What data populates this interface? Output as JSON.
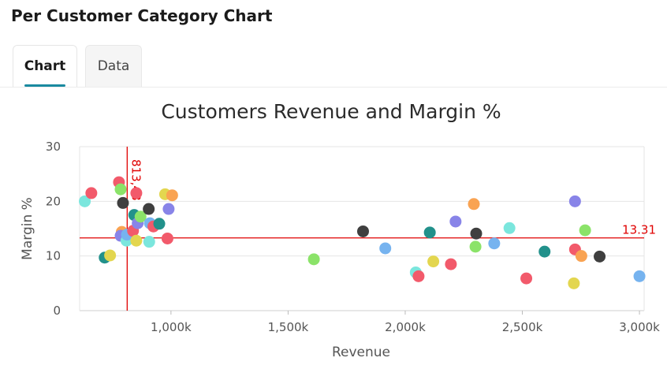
{
  "page": {
    "title": "Per Customer Category Chart"
  },
  "tabs": [
    {
      "label": "Chart",
      "active": true
    },
    {
      "label": "Data",
      "active": false
    }
  ],
  "chart_data": {
    "type": "scatter",
    "title": "Customers Revenue and Margin %",
    "xlabel": "Revenue",
    "ylabel": "Margin %",
    "xlim": [
      610000,
      3020000
    ],
    "ylim": [
      0,
      30
    ],
    "x_ticks": [
      1000000,
      1500000,
      2000000,
      2500000,
      3000000
    ],
    "x_tick_labels": [
      "1,000k",
      "1,500k",
      "2,000k",
      "2,500k",
      "3,000k"
    ],
    "y_ticks": [
      0,
      10,
      20,
      30
    ],
    "y_tick_labels": [
      "0",
      "10",
      "20",
      "30"
    ],
    "grid": true,
    "reference_lines": {
      "color": "#e00000",
      "vertical": {
        "x": 813000,
        "label": "813,48"
      },
      "horizontal": {
        "y": 13.31,
        "label": "13.31"
      }
    },
    "points": [
      {
        "x": 632000,
        "y": 20.0,
        "color": "#7be6dd"
      },
      {
        "x": 660000,
        "y": 21.5,
        "color": "#f25a6b"
      },
      {
        "x": 717000,
        "y": 9.7,
        "color": "#22918b"
      },
      {
        "x": 740000,
        "y": 10.1,
        "color": "#e3d64f"
      },
      {
        "x": 778000,
        "y": 23.5,
        "color": "#f25a6b"
      },
      {
        "x": 785000,
        "y": 22.2,
        "color": "#8be369"
      },
      {
        "x": 790000,
        "y": 14.4,
        "color": "#f9a352"
      },
      {
        "x": 795000,
        "y": 19.7,
        "color": "#3f3f3f"
      },
      {
        "x": 785000,
        "y": 13.7,
        "color": "#8884e8"
      },
      {
        "x": 810000,
        "y": 12.8,
        "color": "#7be6dd"
      },
      {
        "x": 812000,
        "y": 13.9,
        "color": "#76b3ef"
      },
      {
        "x": 838000,
        "y": 14.6,
        "color": "#f25a6b"
      },
      {
        "x": 843000,
        "y": 17.5,
        "color": "#22918b"
      },
      {
        "x": 852000,
        "y": 21.5,
        "color": "#f25a6b"
      },
      {
        "x": 852000,
        "y": 12.8,
        "color": "#e3d64f"
      },
      {
        "x": 858000,
        "y": 16.0,
        "color": "#8884e8"
      },
      {
        "x": 870000,
        "y": 17.2,
        "color": "#8be369"
      },
      {
        "x": 905000,
        "y": 18.6,
        "color": "#3f3f3f"
      },
      {
        "x": 910000,
        "y": 16.0,
        "color": "#76b3ef"
      },
      {
        "x": 907000,
        "y": 12.6,
        "color": "#7be6dd"
      },
      {
        "x": 925000,
        "y": 15.4,
        "color": "#f25a6b"
      },
      {
        "x": 950000,
        "y": 15.9,
        "color": "#22918b"
      },
      {
        "x": 975000,
        "y": 21.3,
        "color": "#e3d64f"
      },
      {
        "x": 1005000,
        "y": 21.1,
        "color": "#f9a352"
      },
      {
        "x": 985000,
        "y": 13.2,
        "color": "#f25a6b"
      },
      {
        "x": 990000,
        "y": 18.6,
        "color": "#8884e8"
      },
      {
        "x": 1610000,
        "y": 9.4,
        "color": "#8be369"
      },
      {
        "x": 1820000,
        "y": 14.5,
        "color": "#3f3f3f"
      },
      {
        "x": 1915000,
        "y": 11.4,
        "color": "#76b3ef"
      },
      {
        "x": 2045000,
        "y": 7.0,
        "color": "#7be6dd"
      },
      {
        "x": 2057000,
        "y": 6.3,
        "color": "#f25a6b"
      },
      {
        "x": 2105000,
        "y": 14.3,
        "color": "#22918b"
      },
      {
        "x": 2120000,
        "y": 9.0,
        "color": "#e3d64f"
      },
      {
        "x": 2195000,
        "y": 8.5,
        "color": "#f25a6b"
      },
      {
        "x": 2215000,
        "y": 16.3,
        "color": "#8884e8"
      },
      {
        "x": 2293000,
        "y": 19.5,
        "color": "#f9a352"
      },
      {
        "x": 2300000,
        "y": 11.7,
        "color": "#8be369"
      },
      {
        "x": 2303000,
        "y": 14.1,
        "color": "#3f3f3f"
      },
      {
        "x": 2380000,
        "y": 12.3,
        "color": "#76b3ef"
      },
      {
        "x": 2445000,
        "y": 15.1,
        "color": "#7be6dd"
      },
      {
        "x": 2517000,
        "y": 5.9,
        "color": "#f25a6b"
      },
      {
        "x": 2595000,
        "y": 10.8,
        "color": "#22918b"
      },
      {
        "x": 2720000,
        "y": 5.0,
        "color": "#e3d64f"
      },
      {
        "x": 2725000,
        "y": 11.2,
        "color": "#f25a6b"
      },
      {
        "x": 2725000,
        "y": 20.0,
        "color": "#8884e8"
      },
      {
        "x": 2752000,
        "y": 10.0,
        "color": "#f9a352"
      },
      {
        "x": 2768000,
        "y": 14.7,
        "color": "#8be369"
      },
      {
        "x": 2830000,
        "y": 9.9,
        "color": "#3f3f3f"
      },
      {
        "x": 3000000,
        "y": 6.3,
        "color": "#76b3ef"
      }
    ]
  }
}
